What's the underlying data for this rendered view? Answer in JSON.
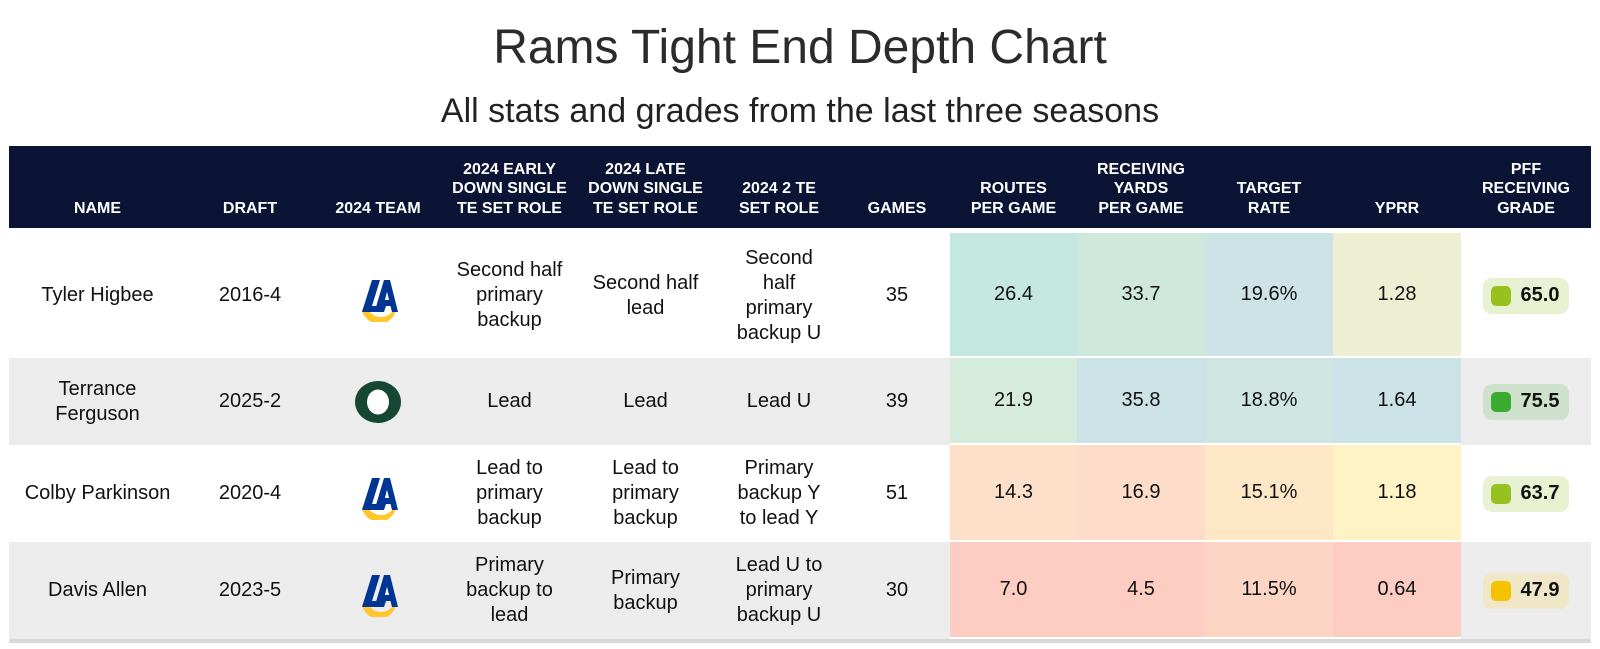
{
  "title": "Rams Tight End Depth Chart",
  "subtitle": "All stats and grades from the last three seasons",
  "columns": [
    "NAME",
    "DRAFT",
    "2024 TEAM",
    "2024 EARLY\nDOWN SINGLE\nTE SET ROLE",
    "2024 LATE\nDOWN SINGLE\nTE SET ROLE",
    "2024 2 TE\nSET ROLE",
    "GAMES",
    "ROUTES\nPER GAME",
    "RECEIVING\nYARDS\nPER GAME",
    "TARGET\nRATE",
    "YPRR",
    "PFF\nRECEIVING\nGRADE"
  ],
  "rows": [
    {
      "name": "Tyler Higbee",
      "draft": "2016-4",
      "team_logo": "la-rams-logo",
      "early_down_role": "Second half\nprimary\nbackup",
      "late_down_role": "Second half\nlead",
      "two_te_role": "Second\nhalf\nprimary\nbackup U",
      "games": "35",
      "routes_per_game": "26.4",
      "receiving_yards_per_game": "33.7",
      "target_rate": "19.6%",
      "yprr": "1.28",
      "pff_grade": "65.0",
      "colors": {
        "routes": "#c4e7df",
        "yards": "#cfe8dc",
        "target": "#cde3e5",
        "yprr": "#eeefd2",
        "grade_square": "#96c11f",
        "grade_bg": "#e8f1d2"
      }
    },
    {
      "name": "Terrance\nFerguson",
      "draft": "2025-2",
      "team_logo": "oregon-logo",
      "early_down_role": "Lead",
      "late_down_role": "Lead",
      "two_te_role": "Lead U",
      "games": "39",
      "routes_per_game": "21.9",
      "receiving_yards_per_game": "35.8",
      "target_rate": "18.8%",
      "yprr": "1.64",
      "pff_grade": "75.5",
      "colors": {
        "routes": "#d5ebdc",
        "yards": "#cbe2e6",
        "target": "#cfe5e2",
        "yprr": "#cbe2e6",
        "grade_square": "#3aab2f",
        "grade_bg": "#cde1cd"
      }
    },
    {
      "name": "Colby Parkinson",
      "draft": "2020-4",
      "team_logo": "la-rams-logo",
      "early_down_role": "Lead to\nprimary\nbackup",
      "late_down_role": "Lead to\nprimary\nbackup",
      "two_te_role": "Primary\nbackup Y\nto lead Y",
      "games": "51",
      "routes_per_game": "14.3",
      "receiving_yards_per_game": "16.9",
      "target_rate": "15.1%",
      "yprr": "1.18",
      "pff_grade": "63.7",
      "colors": {
        "routes": "#fde0c9",
        "yards": "#fddcc9",
        "target": "#fde7c6",
        "yprr": "#fdf3c4",
        "grade_square": "#96c11f",
        "grade_bg": "#e8f1d2"
      }
    },
    {
      "name": "Davis Allen",
      "draft": "2023-5",
      "team_logo": "la-rams-logo",
      "early_down_role": "Primary\nbackup to\nlead",
      "late_down_role": "Primary\nbackup",
      "two_te_role": "Lead U to\nprimary\nbackup U",
      "games": "30",
      "routes_per_game": "7.0",
      "receiving_yards_per_game": "4.5",
      "target_rate": "11.5%",
      "yprr": "0.64",
      "pff_grade": "47.9",
      "colors": {
        "routes": "#fdcdc3",
        "yards": "#fdcdc3",
        "target": "#fdd5c5",
        "yprr": "#fdcdc3",
        "grade_square": "#f5c200",
        "grade_bg": "#efe7c8"
      }
    }
  ],
  "brand": {
    "header_bg": "#0b1435",
    "rams_blue": "#003594",
    "rams_gold": "#ffc72c",
    "oregon_green": "#154733"
  }
}
